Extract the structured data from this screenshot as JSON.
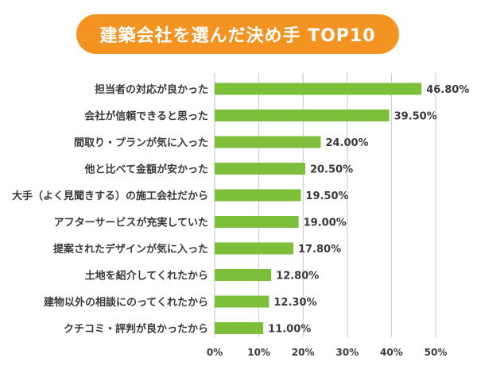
{
  "colors": {
    "accent": "#f39321",
    "bar": "#7dbe3b",
    "grid": "#c8c8c8"
  },
  "chart_data": {
    "type": "bar",
    "orientation": "horizontal",
    "title": "建築会社を選んだ決め手 TOP10",
    "categories": [
      "担当者の対応が良かった",
      "会社が信頼できると思った",
      "間取り・プランが気に入った",
      "他と比べて金額が安かった",
      "大手（よく見聞きする）の施工会社だから",
      "アフターサービスが充実していた",
      "提案されたデザインが気に入った",
      "土地を紹介してくれたから",
      "建物以外の相談にのってくれたから",
      "クチコミ・評判が良かったから"
    ],
    "values": [
      46.8,
      39.5,
      24.0,
      20.5,
      19.5,
      19.0,
      17.8,
      12.8,
      12.3,
      11.0
    ],
    "value_labels": [
      "46.80%",
      "39.50%",
      "24.00%",
      "20.50%",
      "19.50%",
      "19.00%",
      "17.80%",
      "12.80%",
      "12.30%",
      "11.00%"
    ],
    "xlim": [
      0,
      50
    ],
    "x_ticks": [
      "0%",
      "10%",
      "20%",
      "30%",
      "40%",
      "50%"
    ],
    "grid": true
  }
}
